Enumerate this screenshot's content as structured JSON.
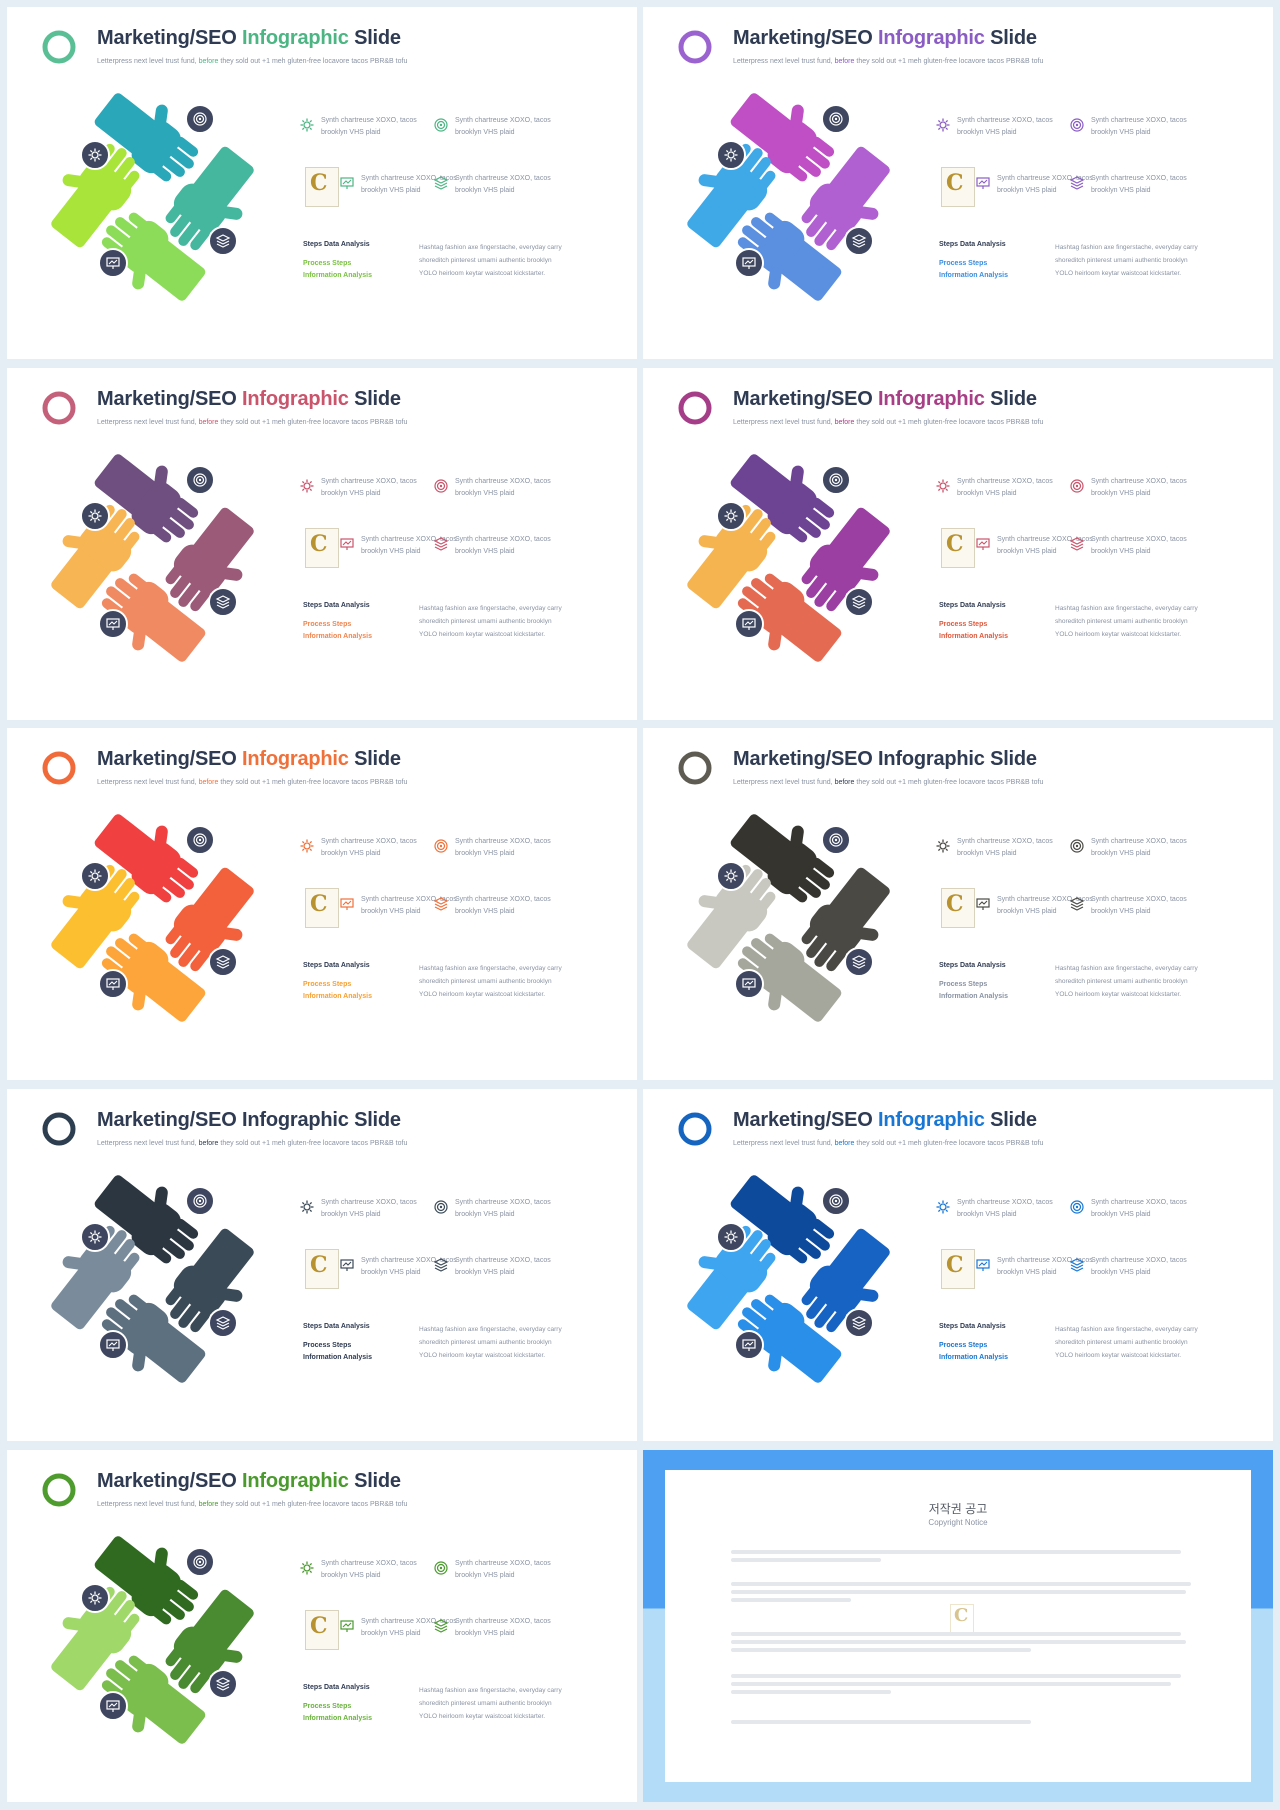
{
  "slide_title": {
    "part1": "Marketing/SEO",
    "part2": "Infographic",
    "part3": "Slide"
  },
  "subtitle": {
    "pre": "Letterpress next level trust fund,",
    "highlight": "before",
    "post": "they sold out +1 meh gluten-free locavore tacos PBR&B tofu"
  },
  "feature_text": "Synth chartreuse XOXO, tacos brooklyn VHS plaid",
  "labels": {
    "steps": "Steps Data Analysis",
    "process": "Process Steps",
    "info": "Information Analysis"
  },
  "paragraph": "Hashtag fashion axe fingerstache, everyday carry shoreditch pinterest umami authentic brooklyn YOLO heirloom keytar waistcoat kickstarter.",
  "logo_letter": "C",
  "icons": [
    "gear-icon",
    "target-icon",
    "layers-icon",
    "presentation-icon"
  ],
  "slides": [
    {
      "accent": "#4cb583",
      "ring": "#5bbf95",
      "hands": [
        "#2aa7b8",
        "#45b79e",
        "#8cdc5a",
        "#a8e43a"
      ],
      "icon": "#4cb583",
      "label": "#7ac141"
    },
    {
      "accent": "#8a5cc4",
      "ring": "#9b63d0",
      "hands": [
        "#c04fc6",
        "#b060d0",
        "#5b8fe0",
        "#3fa9e8"
      ],
      "icon": "#8a5cc4",
      "label": "#3b8ee0"
    },
    {
      "accent": "#c9546b",
      "ring": "#c4607a",
      "hands": [
        "#6e4f7f",
        "#9a5a78",
        "#f08a62",
        "#f7b553"
      ],
      "icon": "#c9546b",
      "label": "#f0854f"
    },
    {
      "accent": "#a83f86",
      "ring": "#a63d88",
      "hands": [
        "#6d4494",
        "#9b3fa3",
        "#e56a52",
        "#f6b450"
      ],
      "icon": "#c9546b",
      "label": "#e0593c"
    },
    {
      "accent": "#f0703a",
      "ring": "#f06a3a",
      "hands": [
        "#f04040",
        "#f2613c",
        "#fda53a",
        "#fcbf30"
      ],
      "icon": "#f0703a",
      "label": "#f7a030"
    },
    {
      "accent": "#2f3b52",
      "ring": "#5d5b52",
      "hands": [
        "#35342e",
        "#4a4944",
        "#a5a79c",
        "#c8c8c0"
      ],
      "icon": "#4a4944",
      "label": "#8a93a3"
    },
    {
      "accent": "#2f3b52",
      "ring": "#2c3e50",
      "hands": [
        "#2b3641",
        "#3b4a57",
        "#5d7080",
        "#7a8c9b"
      ],
      "icon": "#3b4a57",
      "label": "#2f3b52"
    },
    {
      "accent": "#1877d4",
      "ring": "#1565c0",
      "hands": [
        "#0e4a9c",
        "#1763c4",
        "#2a8fe8",
        "#3ea5f0"
      ],
      "icon": "#1877d4",
      "label": "#1877d4"
    },
    {
      "accent": "#4a9a2e",
      "ring": "#4f9c2e",
      "hands": [
        "#2f6a20",
        "#4a8a30",
        "#7cbe4e",
        "#a0d86a"
      ],
      "icon": "#4a9a2e",
      "label": "#6ab33c"
    }
  ],
  "notice": {
    "title": "저작권 공고",
    "subtitle": "Copyright Notice"
  }
}
